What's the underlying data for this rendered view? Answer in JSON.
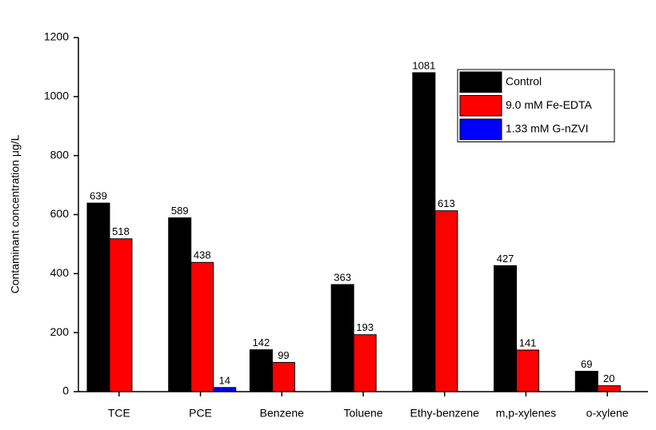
{
  "chart_data": {
    "type": "bar",
    "ylabel": "Contaminant concentration μg/L",
    "categories": [
      "TCE",
      "PCE",
      "Benzene",
      "Toluene",
      "Ethy-benzene",
      "m,p-xylenes",
      "o-xylene"
    ],
    "series": [
      {
        "name": "Control",
        "color": "#000000",
        "values": [
          639,
          589,
          142,
          363,
          1081,
          427,
          69
        ]
      },
      {
        "name": "9.0 mM Fe-EDTA",
        "color": "#ff0000",
        "values": [
          518,
          438,
          99,
          193,
          613,
          141,
          20
        ]
      },
      {
        "name": "1.33 mM G-nZVI",
        "color": "#0000ff",
        "values": [
          null,
          14,
          null,
          null,
          null,
          null,
          null
        ]
      }
    ],
    "ylim": [
      0,
      1200
    ],
    "yticks": [
      0,
      200,
      400,
      600,
      800,
      1000,
      1200
    ],
    "legend": "upper-right"
  }
}
